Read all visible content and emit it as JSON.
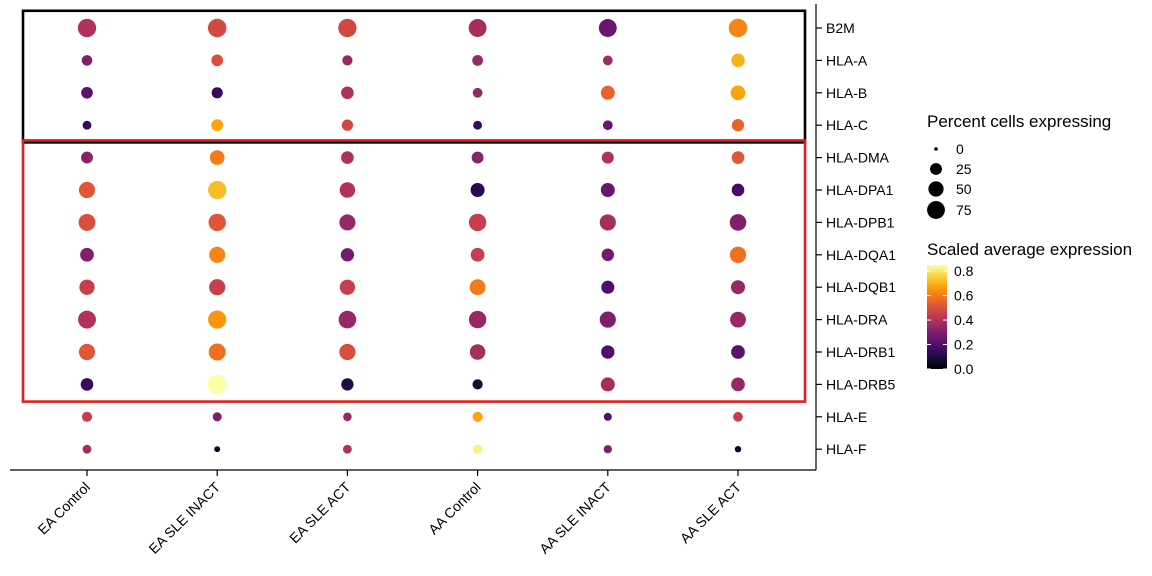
{
  "chart_data": {
    "type": "dot",
    "title": "",
    "xlabel": "",
    "ylabel": "",
    "categories": [
      "EA Control",
      "EA SLE INACT",
      "EA SLE ACT",
      "AA Control",
      "AA SLE INACT",
      "AA SLE ACT"
    ],
    "genes": [
      "B2M",
      "HLA-A",
      "HLA-B",
      "HLA-C",
      "HLA-DMA",
      "HLA-DPA1",
      "HLA-DPB1",
      "HLA-DQA1",
      "HLA-DQB1",
      "HLA-DRA",
      "HLA-DRB1",
      "HLA-DRB5",
      "HLA-E",
      "HLA-F"
    ],
    "percent_expressing": [
      [
        80,
        82,
        80,
        75,
        75,
        82
      ],
      [
        18,
        24,
        16,
        19,
        14,
        36
      ],
      [
        24,
        21,
        30,
        14,
        40,
        45
      ],
      [
        10,
        25,
        22,
        10,
        14,
        28
      ],
      [
        25,
        45,
        30,
        25,
        26,
        30
      ],
      [
        58,
        80,
        52,
        40,
        40,
        30
      ],
      [
        65,
        70,
        57,
        70,
        58,
        62
      ],
      [
        38,
        58,
        35,
        38,
        29,
        60
      ],
      [
        50,
        58,
        50,
        55,
        33,
        40
      ],
      [
        75,
        78,
        72,
        70,
        58,
        55
      ],
      [
        58,
        66,
        58,
        52,
        35,
        38
      ],
      [
        30,
        85,
        28,
        16,
        40,
        38
      ],
      [
        16,
        11,
        9,
        16,
        7,
        14
      ],
      [
        10,
        2,
        10,
        12,
        8,
        3
      ]
    ],
    "scaled_avg_expression": [
      [
        0.4,
        0.48,
        0.48,
        0.38,
        0.25,
        0.62
      ],
      [
        0.3,
        0.5,
        0.35,
        0.35,
        0.36,
        0.7
      ],
      [
        0.22,
        0.15,
        0.4,
        0.35,
        0.55,
        0.68
      ],
      [
        0.15,
        0.68,
        0.48,
        0.15,
        0.25,
        0.55
      ],
      [
        0.32,
        0.6,
        0.4,
        0.32,
        0.4,
        0.52
      ],
      [
        0.52,
        0.72,
        0.4,
        0.12,
        0.25,
        0.18
      ],
      [
        0.5,
        0.52,
        0.35,
        0.45,
        0.38,
        0.3
      ],
      [
        0.3,
        0.62,
        0.28,
        0.45,
        0.28,
        0.58
      ],
      [
        0.45,
        0.45,
        0.45,
        0.6,
        0.2,
        0.35
      ],
      [
        0.4,
        0.65,
        0.35,
        0.35,
        0.3,
        0.35
      ],
      [
        0.52,
        0.58,
        0.5,
        0.38,
        0.2,
        0.22
      ],
      [
        0.15,
        0.85,
        0.1,
        0.08,
        0.38,
        0.35
      ],
      [
        0.45,
        0.3,
        0.35,
        0.68,
        0.2,
        0.45
      ],
      [
        0.38,
        0.05,
        0.4,
        0.82,
        0.3,
        0.05
      ]
    ],
    "size_legend": {
      "title": "Percent cells expressing",
      "breaks": [
        0,
        25,
        50,
        75
      ],
      "labels": [
        "0",
        "25",
        "50",
        "75"
      ]
    },
    "color_legend": {
      "title": "Scaled average expression",
      "breaks": [
        0.0,
        0.2,
        0.4,
        0.6,
        0.8
      ],
      "labels": [
        "0.0",
        "0.2",
        "0.4",
        "0.6",
        "0.8"
      ],
      "range": [
        0,
        0.85
      ],
      "colormap": "inferno"
    },
    "highlight_boxes": [
      {
        "genes": [
          "B2M",
          "HLA-A",
          "HLA-B",
          "HLA-C"
        ],
        "color": "#000000"
      },
      {
        "genes": [
          "HLA-DMA",
          "HLA-DPA1",
          "HLA-DPB1",
          "HLA-DQA1",
          "HLA-DQB1",
          "HLA-DRA",
          "HLA-DRB1",
          "HLA-DRB5"
        ],
        "color": "#e0201c"
      }
    ]
  }
}
